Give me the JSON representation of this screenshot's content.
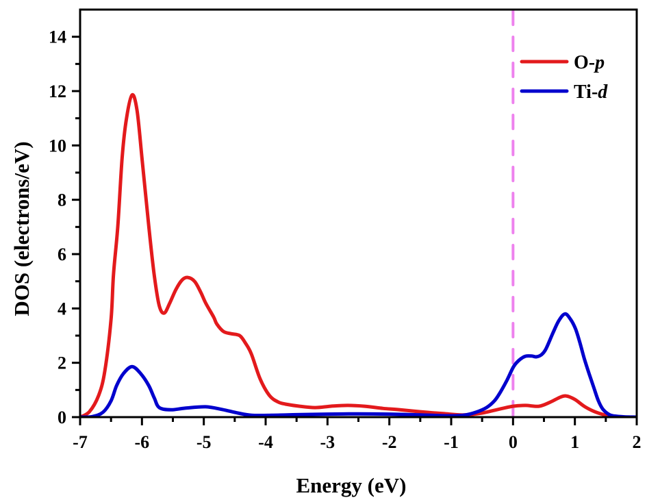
{
  "chart_data": {
    "type": "line",
    "title": "",
    "xlabel": "Energy (eV)",
    "ylabel": "DOS (electrons/eV)",
    "xlim": [
      -7,
      2
    ],
    "ylim": [
      0,
      15
    ],
    "x_ticks": [
      -7,
      -6,
      -5,
      -4,
      -3,
      -2,
      -1,
      0,
      1,
      2
    ],
    "x_tick_labels": [
      "-7",
      "-6",
      "-5",
      "-4",
      "-3",
      "-2",
      "-1",
      "0",
      "1",
      "2"
    ],
    "y_ticks": [
      0,
      2,
      4,
      6,
      8,
      10,
      12,
      14
    ],
    "y_tick_labels": [
      "0",
      "2",
      "4",
      "6",
      "8",
      "10",
      "12",
      "14"
    ],
    "grid": false,
    "legend_position": "top-right",
    "fermi_level": {
      "x": 0,
      "style": "dashed",
      "color": "#ee82ee"
    },
    "series": [
      {
        "name": "O-p",
        "name_main": "O-",
        "name_italic": "p",
        "color": "#e31a1c",
        "points": [
          [
            -7.0,
            0.0
          ],
          [
            -6.85,
            0.2
          ],
          [
            -6.7,
            0.8
          ],
          [
            -6.6,
            1.7
          ],
          [
            -6.5,
            3.6
          ],
          [
            -6.46,
            5.26
          ],
          [
            -6.39,
            7.03
          ],
          [
            -6.32,
            9.55
          ],
          [
            -6.25,
            11.0
          ],
          [
            -6.16,
            11.86
          ],
          [
            -6.08,
            11.3
          ],
          [
            -6.0,
            9.55
          ],
          [
            -5.89,
            7.03
          ],
          [
            -5.8,
            5.2
          ],
          [
            -5.72,
            4.1
          ],
          [
            -5.64,
            3.83
          ],
          [
            -5.55,
            4.2
          ],
          [
            -5.45,
            4.7
          ],
          [
            -5.35,
            5.05
          ],
          [
            -5.26,
            5.14
          ],
          [
            -5.15,
            5.0
          ],
          [
            -5.05,
            4.6
          ],
          [
            -4.97,
            4.2
          ],
          [
            -4.84,
            3.68
          ],
          [
            -4.79,
            3.43
          ],
          [
            -4.68,
            3.15
          ],
          [
            -4.56,
            3.07
          ],
          [
            -4.42,
            3.0
          ],
          [
            -4.32,
            2.7
          ],
          [
            -4.23,
            2.32
          ],
          [
            -4.09,
            1.41
          ],
          [
            -3.94,
            0.8
          ],
          [
            -3.8,
            0.56
          ],
          [
            -3.68,
            0.48
          ],
          [
            -3.45,
            0.4
          ],
          [
            -3.2,
            0.35
          ],
          [
            -2.95,
            0.4
          ],
          [
            -2.68,
            0.43
          ],
          [
            -2.4,
            0.4
          ],
          [
            -2.1,
            0.32
          ],
          [
            -1.87,
            0.28
          ],
          [
            -1.5,
            0.2
          ],
          [
            -1.13,
            0.13
          ],
          [
            -0.8,
            0.08
          ],
          [
            -0.5,
            0.15
          ],
          [
            -0.25,
            0.28
          ],
          [
            0.0,
            0.4
          ],
          [
            0.2,
            0.43
          ],
          [
            0.42,
            0.4
          ],
          [
            0.6,
            0.55
          ],
          [
            0.75,
            0.72
          ],
          [
            0.86,
            0.78
          ],
          [
            1.0,
            0.65
          ],
          [
            1.15,
            0.4
          ],
          [
            1.3,
            0.22
          ],
          [
            1.45,
            0.1
          ],
          [
            1.6,
            0.02
          ],
          [
            1.8,
            0.0
          ],
          [
            2.0,
            0.0
          ]
        ]
      },
      {
        "name": "Ti-d",
        "name_main": "Ti-",
        "name_italic": "d",
        "color": "#0000cd",
        "points": [
          [
            -7.0,
            0.0
          ],
          [
            -6.8,
            0.02
          ],
          [
            -6.63,
            0.18
          ],
          [
            -6.5,
            0.6
          ],
          [
            -6.41,
            1.16
          ],
          [
            -6.3,
            1.6
          ],
          [
            -6.16,
            1.86
          ],
          [
            -6.02,
            1.6
          ],
          [
            -5.89,
            1.16
          ],
          [
            -5.8,
            0.7
          ],
          [
            -5.72,
            0.35
          ],
          [
            -5.53,
            0.27
          ],
          [
            -5.3,
            0.33
          ],
          [
            -4.97,
            0.38
          ],
          [
            -4.7,
            0.28
          ],
          [
            -4.45,
            0.15
          ],
          [
            -4.23,
            0.07
          ],
          [
            -3.9,
            0.07
          ],
          [
            -3.5,
            0.09
          ],
          [
            -3.0,
            0.11
          ],
          [
            -2.5,
            0.12
          ],
          [
            -2.0,
            0.11
          ],
          [
            -1.5,
            0.08
          ],
          [
            -1.0,
            0.05
          ],
          [
            -0.77,
            0.08
          ],
          [
            -0.6,
            0.18
          ],
          [
            -0.43,
            0.35
          ],
          [
            -0.3,
            0.6
          ],
          [
            -0.21,
            0.9
          ],
          [
            -0.1,
            1.35
          ],
          [
            0.01,
            1.86
          ],
          [
            0.1,
            2.1
          ],
          [
            0.2,
            2.24
          ],
          [
            0.3,
            2.25
          ],
          [
            0.38,
            2.22
          ],
          [
            0.46,
            2.3
          ],
          [
            0.53,
            2.5
          ],
          [
            0.64,
            3.07
          ],
          [
            0.74,
            3.55
          ],
          [
            0.84,
            3.8
          ],
          [
            0.93,
            3.6
          ],
          [
            1.01,
            3.25
          ],
          [
            1.08,
            2.75
          ],
          [
            1.15,
            2.17
          ],
          [
            1.23,
            1.6
          ],
          [
            1.31,
            1.06
          ],
          [
            1.38,
            0.6
          ],
          [
            1.45,
            0.3
          ],
          [
            1.55,
            0.1
          ],
          [
            1.64,
            0.04
          ],
          [
            1.8,
            0.01
          ],
          [
            2.0,
            0.0
          ]
        ]
      }
    ]
  }
}
